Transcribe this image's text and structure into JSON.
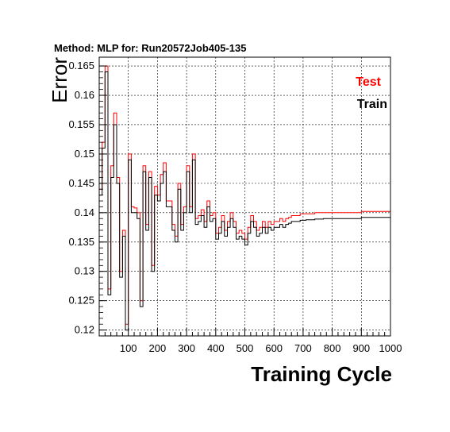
{
  "chart_data": {
    "type": "line",
    "title": "Method: MLP for: Run20572Job405-135",
    "xlabel": "Training Cycle",
    "ylabel": "Error",
    "xlim": [
      0,
      1000
    ],
    "ylim": [
      0.119,
      0.1665
    ],
    "grid": true,
    "legend_position": "top-right",
    "x_ticks": [
      100,
      200,
      300,
      400,
      500,
      600,
      700,
      800,
      900,
      1000
    ],
    "y_ticks": [
      0.12,
      0.125,
      0.13,
      0.135,
      0.14,
      0.145,
      0.15,
      0.155,
      0.16,
      0.165
    ],
    "y_tick_labels": [
      "0.12",
      "0.125",
      "0.13",
      "0.135",
      "0.14",
      "0.145",
      "0.15",
      "0.155",
      "0.16",
      "0.165"
    ],
    "x_tick_labels": [
      "100",
      "200",
      "300",
      "400",
      "500",
      "600",
      "700",
      "800",
      "900",
      "1000"
    ],
    "series": [
      {
        "name": "Test",
        "color": "#ff0000",
        "x": [
          0,
          10,
          20,
          30,
          40,
          50,
          60,
          70,
          80,
          90,
          100,
          110,
          120,
          130,
          140,
          150,
          160,
          170,
          180,
          190,
          200,
          210,
          220,
          230,
          240,
          250,
          260,
          270,
          280,
          290,
          300,
          310,
          320,
          330,
          340,
          350,
          360,
          370,
          380,
          390,
          400,
          410,
          420,
          430,
          440,
          450,
          460,
          470,
          480,
          490,
          500,
          510,
          520,
          530,
          540,
          550,
          560,
          570,
          580,
          590,
          600,
          610,
          620,
          630,
          640,
          650,
          660,
          670,
          680,
          690,
          700,
          710,
          720,
          730,
          740,
          750,
          760,
          770,
          780,
          790,
          800,
          850,
          900,
          950,
          1000
        ],
        "values": [
          0.144,
          0.152,
          0.165,
          0.127,
          0.148,
          0.157,
          0.146,
          0.13,
          0.137,
          0.121,
          0.15,
          0.141,
          0.1408,
          0.14,
          0.125,
          0.148,
          0.138,
          0.147,
          0.131,
          0.1445,
          0.143,
          0.1465,
          0.1485,
          0.142,
          0.142,
          0.138,
          0.136,
          0.145,
          0.138,
          0.141,
          0.148,
          0.141,
          0.15,
          0.139,
          0.1395,
          0.1405,
          0.1385,
          0.142,
          0.1395,
          0.14,
          0.1365,
          0.1375,
          0.1395,
          0.137,
          0.1385,
          0.14,
          0.1385,
          0.1365,
          0.137,
          0.1365,
          0.1355,
          0.1375,
          0.1395,
          0.1385,
          0.137,
          0.1375,
          0.1385,
          0.1375,
          0.1385,
          0.138,
          0.1385,
          0.1385,
          0.139,
          0.1385,
          0.139,
          0.1392,
          0.1395,
          0.1395,
          0.1395,
          0.1398,
          0.1398,
          0.1398,
          0.1398,
          0.1398,
          0.14,
          0.14,
          0.14,
          0.14,
          0.14,
          0.14,
          0.14,
          0.14,
          0.1402,
          0.1402,
          0.1402
        ]
      },
      {
        "name": "Train",
        "color": "#000000",
        "x": [
          0,
          10,
          20,
          30,
          40,
          50,
          60,
          70,
          80,
          90,
          100,
          110,
          120,
          130,
          140,
          150,
          160,
          170,
          180,
          190,
          200,
          210,
          220,
          230,
          240,
          250,
          260,
          270,
          280,
          290,
          300,
          310,
          320,
          330,
          340,
          350,
          360,
          370,
          380,
          390,
          400,
          410,
          420,
          430,
          440,
          450,
          460,
          470,
          480,
          490,
          500,
          510,
          520,
          530,
          540,
          550,
          560,
          570,
          580,
          590,
          600,
          610,
          620,
          630,
          640,
          650,
          660,
          670,
          680,
          690,
          700,
          710,
          720,
          730,
          740,
          750,
          760,
          770,
          780,
          790,
          800,
          850,
          900,
          950,
          1000
        ],
        "values": [
          0.143,
          0.151,
          0.164,
          0.126,
          0.146,
          0.155,
          0.145,
          0.129,
          0.136,
          0.12,
          0.149,
          0.14,
          0.14,
          0.139,
          0.124,
          0.147,
          0.137,
          0.146,
          0.13,
          0.143,
          0.142,
          0.145,
          0.147,
          0.141,
          0.141,
          0.137,
          0.135,
          0.144,
          0.137,
          0.14,
          0.147,
          0.14,
          0.149,
          0.138,
          0.1385,
          0.1395,
          0.1375,
          0.141,
          0.1385,
          0.139,
          0.1355,
          0.1365,
          0.1385,
          0.136,
          0.1375,
          0.139,
          0.1375,
          0.1355,
          0.136,
          0.1355,
          0.1345,
          0.1365,
          0.1385,
          0.1375,
          0.136,
          0.1365,
          0.1375,
          0.1365,
          0.1375,
          0.137,
          0.1375,
          0.1375,
          0.138,
          0.1375,
          0.138,
          0.1382,
          0.1385,
          0.1385,
          0.1385,
          0.1387,
          0.1387,
          0.1388,
          0.1388,
          0.1388,
          0.1389,
          0.1389,
          0.1389,
          0.139,
          0.139,
          0.139,
          0.139,
          0.139,
          0.1392,
          0.1392,
          0.1392
        ]
      }
    ]
  }
}
